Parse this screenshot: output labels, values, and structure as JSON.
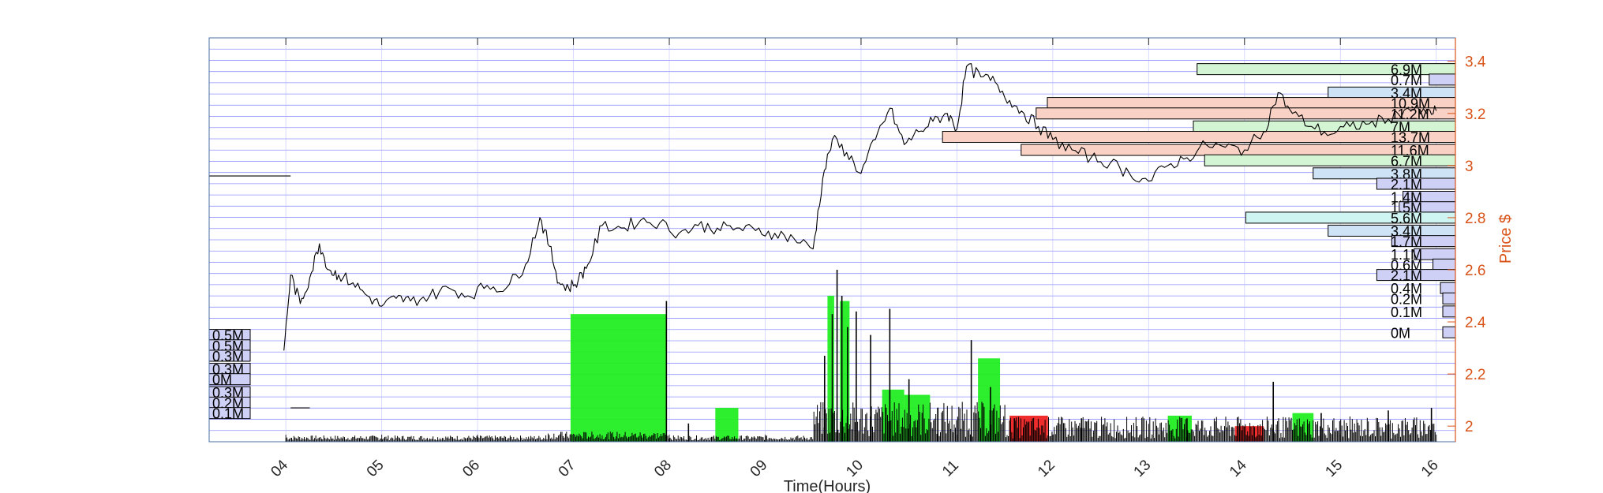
{
  "chart_data": {
    "type": "line",
    "xlabel": "Time(Hours)",
    "ylabel": "Price $",
    "xlim": [
      3.2,
      16.2
    ],
    "ylim": [
      1.94,
      3.49
    ],
    "x_ticks": [
      4,
      5,
      6,
      7,
      8,
      9,
      10,
      11,
      12,
      13,
      14,
      15,
      16
    ],
    "x_tick_labels": [
      "04",
      "05",
      "06",
      "07",
      "08",
      "09",
      "10",
      "11",
      "12",
      "13",
      "14",
      "15",
      "16"
    ],
    "y_ticks": [
      2,
      2.2,
      2.4,
      2.6,
      2.8,
      3,
      3.2,
      3.4
    ],
    "y_tick_labels": [
      "2",
      "2.2",
      "2.4",
      "2.6",
      "2.8",
      "3",
      "3.2",
      "3.4"
    ],
    "colors": {
      "price": "#000000",
      "axis_right": "#d95319",
      "grid": "#6b6bff",
      "volume_up": "#22ee22",
      "volume_down": "#ee2222",
      "profile_green": "#d4f5d4",
      "profile_red": "#f9d2c5",
      "profile_blue": "#cfe3f7",
      "profile_cyan": "#cff5f2",
      "profile_purple": "#cfd0f5"
    },
    "price_series": {
      "name": "Price",
      "x": [
        3.98,
        4.05,
        4.15,
        4.25,
        4.35,
        4.45,
        4.55,
        4.7,
        4.85,
        5.0,
        5.15,
        5.3,
        5.5,
        5.7,
        5.9,
        6.1,
        6.3,
        6.5,
        6.65,
        6.75,
        6.85,
        6.95,
        7.05,
        7.15,
        7.3,
        7.5,
        7.7,
        7.9,
        8.1,
        8.3,
        8.5,
        8.7,
        8.9,
        9.1,
        9.3,
        9.5,
        9.6,
        9.7,
        9.85,
        10.0,
        10.15,
        10.3,
        10.45,
        10.6,
        10.75,
        10.9,
        11.0,
        11.1,
        11.25,
        11.4,
        11.55,
        11.7,
        11.85,
        12.0,
        12.2,
        12.4,
        12.6,
        12.8,
        13.0,
        13.2,
        13.4,
        13.6,
        13.8,
        14.0,
        14.2,
        14.35,
        14.5,
        14.7,
        14.9,
        15.1,
        15.3,
        15.5,
        15.7,
        15.9,
        16.0
      ],
      "y": [
        2.29,
        2.58,
        2.47,
        2.57,
        2.7,
        2.6,
        2.58,
        2.55,
        2.5,
        2.46,
        2.49,
        2.48,
        2.5,
        2.53,
        2.5,
        2.54,
        2.53,
        2.62,
        2.8,
        2.69,
        2.55,
        2.53,
        2.56,
        2.62,
        2.77,
        2.76,
        2.79,
        2.78,
        2.74,
        2.77,
        2.76,
        2.76,
        2.75,
        2.74,
        2.72,
        2.68,
        2.95,
        3.1,
        3.05,
        2.97,
        3.1,
        3.22,
        3.08,
        3.13,
        3.17,
        3.2,
        3.14,
        3.38,
        3.34,
        3.32,
        3.25,
        3.2,
        3.15,
        3.1,
        3.06,
        3.03,
        3.01,
        2.97,
        2.94,
        3.0,
        3.03,
        3.08,
        3.07,
        3.06,
        3.13,
        3.28,
        3.2,
        3.15,
        3.12,
        3.15,
        3.16,
        3.18,
        3.22,
        3.2,
        3.21
      ]
    },
    "volume_profile": [
      {
        "label": "6.9M",
        "price": 3.37,
        "volume": 6.9,
        "color": "#d4f5d4"
      },
      {
        "label": "0.7M",
        "price": 3.33,
        "volume": 0.7,
        "color": "#cfd0f5"
      },
      {
        "label": "3.4M",
        "price": 3.28,
        "volume": 3.4,
        "color": "#cfe3f7"
      },
      {
        "label": "10.9M",
        "price": 3.24,
        "volume": 10.9,
        "color": "#f9d2c5"
      },
      {
        "label": "11.2M",
        "price": 3.2,
        "volume": 11.2,
        "color": "#f9d2c5"
      },
      {
        "label": "7M",
        "price": 3.15,
        "volume": 7.0,
        "color": "#d4f5d4"
      },
      {
        "label": "13.7M",
        "price": 3.11,
        "volume": 13.7,
        "color": "#f9d2c5"
      },
      {
        "label": "11.6M",
        "price": 3.06,
        "volume": 11.6,
        "color": "#f9d2c5"
      },
      {
        "label": "6.7M",
        "price": 3.02,
        "volume": 6.7,
        "color": "#d4f5d4"
      },
      {
        "label": "3.8M",
        "price": 2.97,
        "volume": 3.8,
        "color": "#cfe3f7"
      },
      {
        "label": "2.1M",
        "price": 2.93,
        "volume": 2.1,
        "color": "#cfd0f5"
      },
      {
        "label": "1.4M",
        "price": 2.88,
        "volume": 1.4,
        "color": "#cfd0f5"
      },
      {
        "label": "1.5M",
        "price": 2.84,
        "volume": 1.5,
        "color": "#cfd0f5"
      },
      {
        "label": "5.6M",
        "price": 2.8,
        "volume": 5.6,
        "color": "#cff5f2"
      },
      {
        "label": "3.4M",
        "price": 2.75,
        "volume": 3.4,
        "color": "#cfe3f7"
      },
      {
        "label": "1.7M",
        "price": 2.71,
        "volume": 1.7,
        "color": "#cfd0f5"
      },
      {
        "label": "1.1M",
        "price": 2.66,
        "volume": 1.1,
        "color": "#cfd0f5"
      },
      {
        "label": "0.6M",
        "price": 2.62,
        "volume": 0.6,
        "color": "#cfd0f5"
      },
      {
        "label": "2.1M",
        "price": 2.58,
        "volume": 2.1,
        "color": "#cfd0f5"
      },
      {
        "label": "0.4M",
        "price": 2.53,
        "volume": 0.4,
        "color": "#cfd0f5"
      },
      {
        "label": "0.2M",
        "price": 2.49,
        "volume": 0.2,
        "color": "#cfd0f5"
      },
      {
        "label": "0.1M",
        "price": 2.44,
        "volume": 0.1,
        "color": "#cfd0f5"
      },
      {
        "label": "0M",
        "price": 2.36,
        "volume": 0.02,
        "color": "#cfd0f5"
      }
    ],
    "left_volume_labels": [
      {
        "label": "0.5M",
        "price": 2.35
      },
      {
        "label": "0.5M",
        "price": 2.31
      },
      {
        "label": "0.3M",
        "price": 2.27
      },
      {
        "label": "0.3M",
        "price": 2.22
      },
      {
        "label": "0M",
        "price": 2.18
      },
      {
        "label": "0.3M",
        "price": 2.13
      },
      {
        "label": "0.2M",
        "price": 2.09
      },
      {
        "label": "0.1M",
        "price": 2.05
      }
    ],
    "volume_blocks": [
      {
        "x0": 6.97,
        "x1": 7.97,
        "top": 2.43,
        "color": "#22ee22"
      },
      {
        "x0": 8.48,
        "x1": 8.72,
        "top": 2.07,
        "color": "#22ee22"
      },
      {
        "x0": 9.65,
        "x1": 9.72,
        "top": 2.5,
        "color": "#22ee22"
      },
      {
        "x0": 9.78,
        "x1": 9.88,
        "top": 2.48,
        "color": "#22ee22"
      },
      {
        "x0": 10.22,
        "x1": 10.45,
        "top": 2.14,
        "color": "#22ee22"
      },
      {
        "x0": 10.45,
        "x1": 10.72,
        "top": 2.12,
        "color": "#22ee22"
      },
      {
        "x0": 11.22,
        "x1": 11.45,
        "top": 2.26,
        "color": "#22ee22"
      },
      {
        "x0": 11.55,
        "x1": 11.95,
        "top": 2.04,
        "color": "#ee2222"
      },
      {
        "x0": 13.2,
        "x1": 13.45,
        "top": 2.04,
        "color": "#22ee22"
      },
      {
        "x0": 13.9,
        "x1": 14.2,
        "top": 2.0,
        "color": "#ee2222"
      },
      {
        "x0": 14.5,
        "x1": 14.72,
        "top": 2.05,
        "color": "#22ee22"
      }
    ],
    "volume_spikes": [
      {
        "x": 7.97,
        "top": 2.48
      },
      {
        "x": 8.2,
        "top": 2.01
      },
      {
        "x": 9.62,
        "top": 2.27
      },
      {
        "x": 9.7,
        "top": 2.43
      },
      {
        "x": 9.75,
        "top": 2.6
      },
      {
        "x": 9.8,
        "top": 2.5
      },
      {
        "x": 9.86,
        "top": 2.38
      },
      {
        "x": 9.95,
        "top": 2.44
      },
      {
        "x": 10.1,
        "top": 2.35
      },
      {
        "x": 10.3,
        "top": 2.45
      },
      {
        "x": 10.5,
        "top": 2.18
      },
      {
        "x": 10.8,
        "top": 2.07
      },
      {
        "x": 11.15,
        "top": 2.33
      },
      {
        "x": 11.35,
        "top": 2.15
      },
      {
        "x": 11.6,
        "top": 2.03
      },
      {
        "x": 12.3,
        "top": 2.03
      },
      {
        "x": 13.4,
        "top": 2.03
      },
      {
        "x": 14.3,
        "top": 2.17
      },
      {
        "x": 14.8,
        "top": 2.05
      },
      {
        "x": 15.5,
        "top": 2.06
      },
      {
        "x": 15.95,
        "top": 2.07
      }
    ],
    "left_reference_lines": [
      {
        "x0": 3.2,
        "x1": 4.05,
        "price": 2.96
      },
      {
        "x0": 4.05,
        "x1": 4.25,
        "price": 2.07
      }
    ],
    "grid": true,
    "legend": "none"
  }
}
